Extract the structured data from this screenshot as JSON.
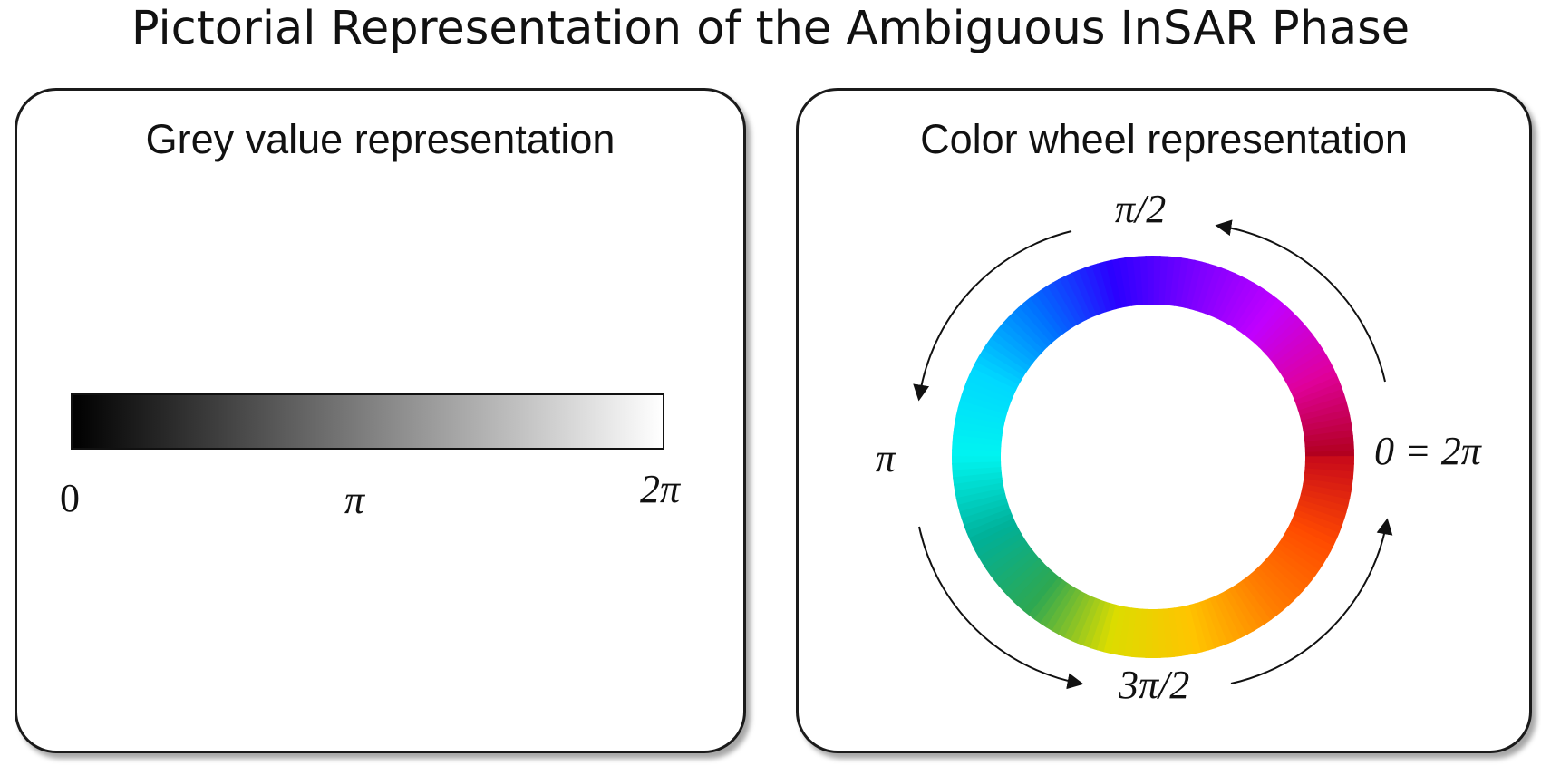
{
  "title": "Pictorial Representation of the Ambiguous InSAR Phase",
  "grey_panel": {
    "title": "Grey value representation",
    "labels": {
      "start": "0",
      "middle": "π",
      "end": "2π"
    }
  },
  "wheel_panel": {
    "title": "Color wheel representation",
    "labels": {
      "top": "π/2",
      "left": "π",
      "right": "0 = 2π",
      "bottom": "3π/2"
    }
  },
  "colors": {
    "grey_start": "#000000",
    "grey_end": "#ffffff",
    "wheel_stops": [
      "#b0001a",
      "#e0009c",
      "#c000ff",
      "#7a00ff",
      "#2b00ff",
      "#0070ff",
      "#00d8ff",
      "#00f4f0",
      "#00b098",
      "#2ea851",
      "#dcdc00",
      "#ffc400",
      "#ff7e00",
      "#ff4a00",
      "#c80a1a"
    ]
  }
}
